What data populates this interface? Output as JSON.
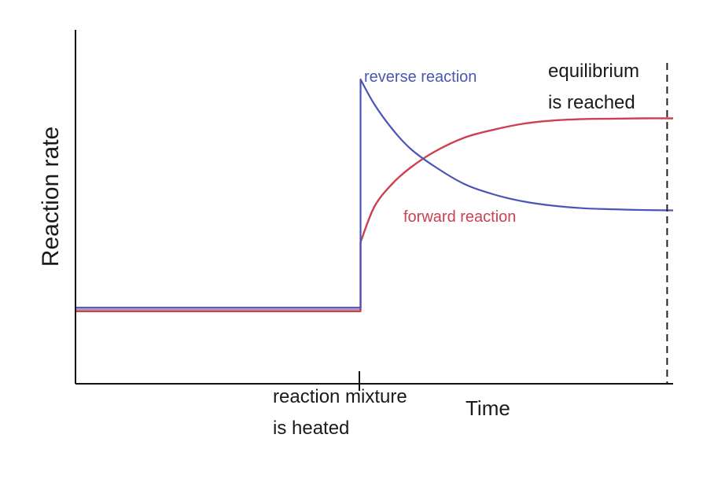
{
  "chart_data": {
    "type": "line",
    "title": "",
    "xlabel": "Time",
    "ylabel": "Reaction rate",
    "x_ticks": false,
    "y_ticks": false,
    "grid": false,
    "legend": "none",
    "xlim": [
      0,
      100
    ],
    "ylim": [
      0,
      100
    ],
    "series": [
      {
        "name": "reverse reaction",
        "color": "#4a56b5",
        "x": [
          0,
          47.7,
          47.7,
          50,
          53,
          56,
          60,
          65,
          70,
          75,
          80,
          85,
          90,
          95,
          100
        ],
        "y": [
          21.5,
          21.5,
          86,
          79,
          72,
          66.5,
          61.5,
          56.5,
          53.5,
          51.5,
          50.3,
          49.6,
          49.3,
          49.1,
          49
        ]
      },
      {
        "name": "forward reaction",
        "color": "#cc4050",
        "x": [
          0,
          47.7,
          47.7,
          50,
          53,
          56,
          60,
          65,
          70,
          75,
          80,
          85,
          90,
          95,
          100
        ],
        "y": [
          20.5,
          20.5,
          40,
          50,
          56.5,
          61,
          65.5,
          69.5,
          71.8,
          73.5,
          74.4,
          74.8,
          74.9,
          75,
          75
        ]
      }
    ],
    "annotations": {
      "heated_label_line1": "reaction mixture",
      "heated_label_line2": "is heated",
      "equilibrium_line1": "equilibrium",
      "equilibrium_line2": "is reached",
      "heated_at_x": 47.7,
      "equilibrium_at_x": 99
    },
    "colors": {
      "axis": "#111111",
      "reverse": "#4a56b5",
      "forward": "#cc4050",
      "pre_step": "#6a3c8a",
      "dashed": "#222222",
      "text": "#1a1a1a"
    }
  }
}
